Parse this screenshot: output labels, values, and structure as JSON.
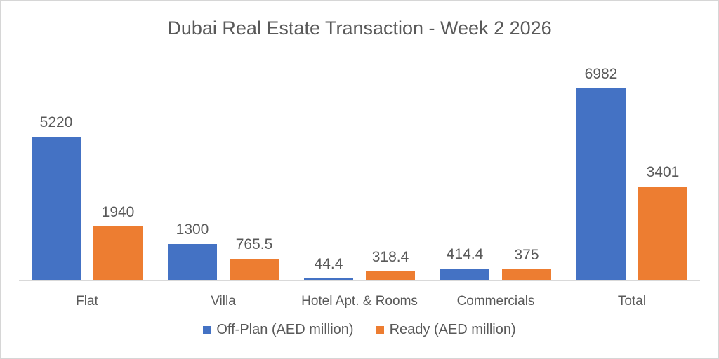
{
  "chart_data": {
    "type": "bar",
    "title": "Dubai Real Estate Transaction - Week 2 2026",
    "categories": [
      "Flat",
      "Villa",
      "Hotel Apt. & Rooms",
      "Commercials",
      "Total"
    ],
    "series": [
      {
        "name": "Off-Plan (AED million)",
        "color": "#4472C4",
        "values": [
          5220,
          1300,
          44.4,
          414.4,
          6982
        ]
      },
      {
        "name": "Ready (AED million)",
        "color": "#ED7D31",
        "values": [
          1940,
          765.5,
          318.4,
          375,
          3401
        ]
      }
    ],
    "data_labels": [
      [
        "5220",
        "1300",
        "44.4",
        "414.4",
        "6982"
      ],
      [
        "1940",
        "765.5",
        "318.4",
        "375",
        "3401"
      ]
    ],
    "xlabel": "",
    "ylabel": "",
    "ylim": [
      0,
      7000
    ],
    "grid": false,
    "y_axis_visible": false,
    "legend_position": "bottom",
    "text_color": "#595959",
    "axis_line_color": "#D9D9D9",
    "frame_border_color": "#D6D6D6"
  }
}
